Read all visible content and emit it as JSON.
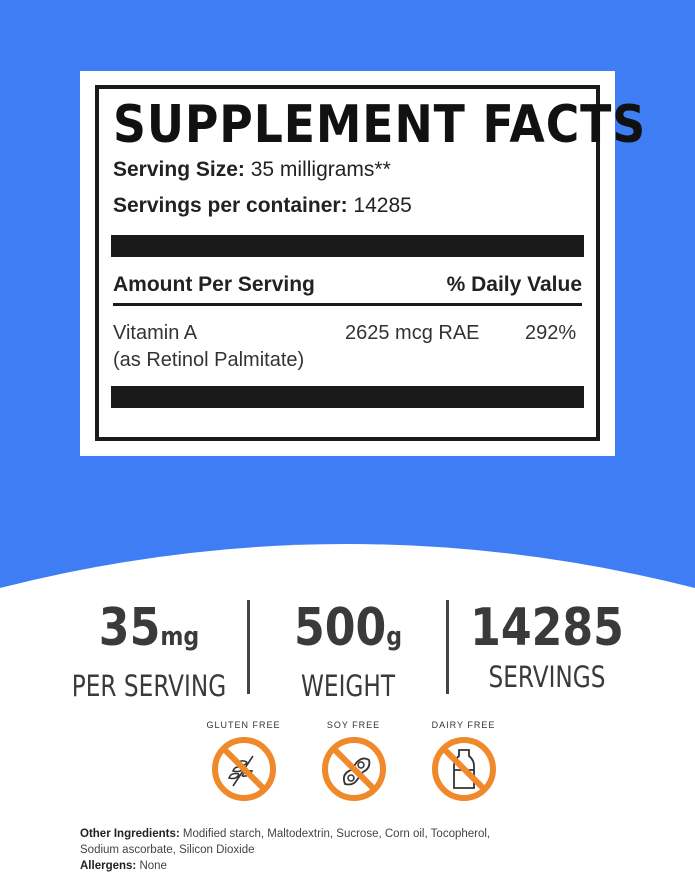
{
  "colors": {
    "background_blue": "#3f7df5",
    "badge_orange": "#f0892c"
  },
  "facts": {
    "title": "SUPPLEMENT FACTS",
    "serving_size_label": "Serving Size:",
    "serving_size_value": "35 milligrams**",
    "servings_label": "Servings per container:",
    "servings_value": "14285",
    "amount_header": "Amount Per Serving",
    "dv_header": "% Daily Value",
    "nutrient_name": "Vitamin A",
    "nutrient_source": "(as Retinol Palmitate)",
    "nutrient_amount": "2625 mcg RAE",
    "nutrient_dv": "292%"
  },
  "stats": [
    {
      "number": "35",
      "unit": "mg",
      "label": "PER SERVING"
    },
    {
      "number": "500",
      "unit": "g",
      "label": "WEIGHT"
    },
    {
      "number": "14285",
      "unit": "",
      "label": "SERVINGS"
    }
  ],
  "badges": [
    {
      "label": "GLUTEN FREE",
      "icon": "wheat-icon"
    },
    {
      "label": "SOY FREE",
      "icon": "soybean-icon"
    },
    {
      "label": "DAIRY FREE",
      "icon": "milk-bottle-icon"
    }
  ],
  "footer": {
    "ingredients_label": "Other Ingredients:",
    "ingredients_line1": "Modified starch, Maltodextrin, Sucrose, Corn oil, Tocopherol,",
    "ingredients_line2": "Sodium ascorbate, Silicon Dioxide",
    "allergens_label": "Allergens:",
    "allergens_value": "None"
  }
}
